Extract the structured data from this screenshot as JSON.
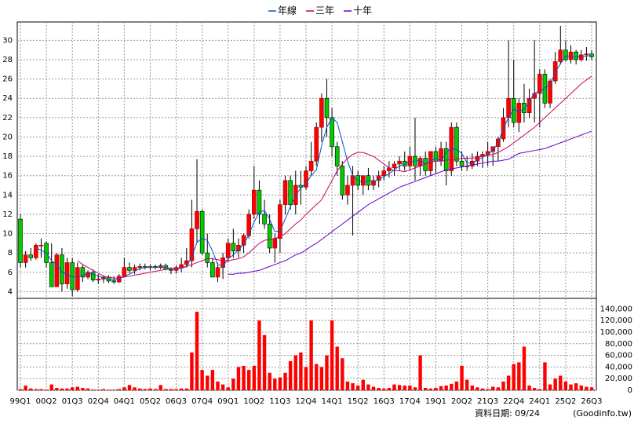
{
  "chart_data": [
    {
      "type": "candlestick",
      "categories": [
        "99Q1",
        null,
        null,
        null,
        null,
        "00Q2",
        null,
        null,
        null,
        null,
        "01Q3",
        null,
        null,
        null,
        null,
        "02Q4",
        null,
        null,
        null,
        null,
        "04Q1",
        null,
        null,
        null,
        null,
        "05Q2",
        null,
        null,
        null,
        null,
        "06Q3",
        null,
        null,
        null,
        null,
        "07Q4",
        null,
        null,
        null,
        null,
        "09Q1",
        null,
        null,
        null,
        null,
        "10Q2",
        null,
        null,
        null,
        null,
        "11Q3",
        null,
        null,
        null,
        null,
        "12Q4",
        null,
        null,
        null,
        null,
        "14Q1",
        null,
        null,
        null,
        null,
        "15Q2",
        null,
        null,
        null,
        null,
        "16Q3",
        null,
        null,
        null,
        null,
        "17Q4",
        null,
        null,
        null,
        null,
        "19Q1",
        null,
        null,
        null,
        null,
        "20Q2",
        null,
        null,
        null,
        null,
        "21Q3",
        null,
        null,
        null,
        null,
        "22Q4",
        null,
        null,
        null,
        null,
        "24Q1",
        null,
        null,
        null,
        null,
        "25Q2",
        null,
        null,
        null,
        null,
        "26Q3"
      ],
      "open": [
        11.5,
        7,
        7.8,
        7.5,
        8.8,
        9,
        7,
        4.5,
        7.8,
        4.8,
        7,
        4.2,
        6.5,
        5.5,
        6,
        5.2,
        5.3,
        5.5,
        5.1,
        5,
        5.6,
        6.5,
        6.2,
        6.5,
        6.6,
        6.5,
        6.6,
        6.5,
        6.7,
        6.3,
        6.2,
        6.5,
        6.8,
        7.2,
        10.5,
        12.3,
        8,
        7,
        5.5,
        6.5,
        7.5,
        9,
        8.2,
        8.8,
        9.8,
        12,
        14.5,
        12,
        11,
        8.5,
        9.5,
        13,
        15.5,
        13,
        15,
        14.8,
        16.5,
        17.5,
        21,
        24,
        22,
        19,
        17,
        14,
        15,
        16,
        15,
        16,
        15,
        15.5,
        16,
        16.5,
        16.8,
        17.2,
        17.5,
        17,
        18,
        17,
        17.8,
        16.5,
        18.5,
        17.5,
        18.8,
        16.5,
        21,
        17.5,
        17,
        17,
        17.5,
        18,
        18.2,
        18.5,
        19,
        19.8,
        22,
        24,
        21.5,
        23.5,
        22.5,
        24,
        24.5,
        26.5,
        23.5,
        25.8,
        27.8,
        29,
        28,
        28.8,
        28,
        28.5,
        28.6
      ],
      "high": [
        12,
        8.2,
        8.5,
        9,
        9.5,
        9.2,
        9,
        8,
        8.5,
        7.5,
        7.5,
        7,
        6.8,
        6.2,
        6.3,
        5.8,
        5.7,
        5.7,
        5.6,
        5.8,
        7.5,
        7,
        6.8,
        6.9,
        6.9,
        6.8,
        6.8,
        6.9,
        6.9,
        6.5,
        6.7,
        7.5,
        8.5,
        13.5,
        17.7,
        12.5,
        10,
        7.5,
        7,
        8,
        9.5,
        10.5,
        9.5,
        10,
        12.5,
        17,
        15.5,
        13.5,
        12,
        10,
        13.5,
        16,
        16,
        16.5,
        16.5,
        17,
        19.5,
        21.5,
        24.5,
        26,
        23,
        19.5,
        17.5,
        16,
        17,
        16.5,
        16,
        16.8,
        16,
        16.5,
        17,
        17.5,
        17.5,
        18,
        18.5,
        19,
        22,
        18,
        18.5,
        18.5,
        19,
        19.5,
        19.5,
        21.5,
        21.5,
        18.5,
        18,
        18.3,
        18.5,
        18.5,
        19.5,
        19,
        20,
        23,
        30,
        28,
        24,
        25.5,
        25,
        30,
        27,
        27,
        26,
        28.8,
        31.5,
        30,
        29.5,
        29,
        29,
        29.3,
        29
      ],
      "low": [
        6.5,
        6.5,
        7.2,
        7.3,
        7.5,
        6.5,
        4.5,
        4.5,
        4,
        4.3,
        3.5,
        4,
        5,
        5.3,
        5,
        4.8,
        4.9,
        4.9,
        4.8,
        4.9,
        5.5,
        5.9,
        5.8,
        6.2,
        6.3,
        6.2,
        6.3,
        6.3,
        6.2,
        5.8,
        5.9,
        6,
        6.5,
        6.5,
        9,
        7.8,
        6.5,
        5.5,
        5,
        5.3,
        7,
        7.5,
        7.5,
        8,
        9.5,
        11.5,
        11,
        10.5,
        8,
        7,
        8,
        12,
        12.5,
        12,
        13,
        14.5,
        16,
        17,
        19.5,
        20,
        18,
        16,
        13.5,
        13,
        9.8,
        14.5,
        14,
        14.5,
        14.5,
        14.8,
        15.5,
        15.8,
        16,
        16.5,
        16.5,
        16.5,
        15.5,
        16,
        16,
        16,
        16.2,
        17,
        15,
        16,
        17,
        16.5,
        16.5,
        16.7,
        17,
        16.8,
        17,
        17,
        17.5,
        19.5,
        21,
        21,
        20.5,
        21.5,
        22,
        21.5,
        21,
        23,
        23,
        25.5,
        27.5,
        27.8,
        27.6,
        27.5,
        27.8,
        27.9,
        28
      ],
      "close": [
        7,
        7.8,
        7.5,
        8.8,
        8.8,
        7,
        4.5,
        7.8,
        4.8,
        7,
        4.2,
        6.5,
        5.5,
        6,
        5.2,
        5.3,
        5.5,
        5.1,
        5,
        5.6,
        6.5,
        6.2,
        6.5,
        6.6,
        6.5,
        6.6,
        6.5,
        6.7,
        6.3,
        6.2,
        6.5,
        6.8,
        7.2,
        10.5,
        12.3,
        8,
        7,
        5.5,
        6.5,
        7.5,
        9,
        8.2,
        8.8,
        9.8,
        12,
        14.5,
        12,
        11,
        8.5,
        9.5,
        13,
        15.5,
        13,
        15,
        14.8,
        16.5,
        17.5,
        21,
        24,
        22,
        19,
        17,
        14,
        15,
        16,
        15,
        16,
        15,
        15.5,
        16,
        16.5,
        16.8,
        17.2,
        17.5,
        17,
        18,
        17,
        17.8,
        16.5,
        18.5,
        17.5,
        18.8,
        16.5,
        21,
        17.5,
        17,
        17,
        17.5,
        18,
        18.2,
        18.5,
        19,
        19.8,
        22,
        24,
        21.5,
        23.5,
        22.5,
        24,
        24.5,
        26.5,
        23.5,
        25.8,
        27.8,
        29,
        28,
        28.8,
        28,
        28.5,
        28.6,
        28.3
      ],
      "up_color": "#ff0000",
      "down_color": "#00cc00",
      "series": [
        {
          "name": "年線",
          "color": "#0055cc",
          "values": [
            null,
            null,
            null,
            8.5,
            8.3,
            8,
            7.2,
            6.8,
            6,
            5.8,
            5.5,
            5.6,
            5.7,
            5.9,
            5.8,
            5.6,
            5.4,
            5.3,
            5.2,
            5.3,
            5.6,
            5.8,
            6.1,
            6.4,
            6.5,
            6.5,
            6.5,
            6.5,
            6.5,
            6.4,
            6.4,
            6.4,
            6.6,
            7.6,
            9.1,
            9.5,
            9.3,
            8.2,
            6.8,
            6.6,
            7.4,
            7.8,
            8.3,
            8.9,
            9.9,
            11.2,
            12.2,
            12.4,
            11.5,
            10.2,
            10.3,
            11.5,
            12.8,
            14,
            14.7,
            15.2,
            16,
            16.6,
            19.1,
            21,
            22,
            21.5,
            19.5,
            17.5,
            16,
            15.5,
            15.3,
            15.5,
            15.4,
            15.6,
            15.9,
            16.2,
            16.6,
            17,
            17.2,
            17.4,
            17.5,
            17.6,
            17.2,
            17.5,
            17.8,
            17.5,
            18.4,
            18.8,
            18.7,
            18.3,
            17.3,
            17.3,
            17.6,
            17.9,
            18.2,
            18.6,
            19.4,
            20.9,
            22,
            22.9,
            22.6,
            22.9,
            23.6,
            24.6,
            24.7,
            25.1,
            25.4,
            26.7,
            27.6,
            28.4,
            28.3,
            28.3,
            28.3,
            28.4,
            28.4
          ]
        },
        {
          "name": "三年",
          "color": "#cc0066",
          "values": [
            null,
            null,
            null,
            null,
            null,
            null,
            null,
            null,
            null,
            null,
            null,
            7.2,
            6.8,
            6.5,
            6.2,
            5.9,
            5.6,
            5.5,
            5.4,
            5.4,
            5.5,
            5.6,
            5.7,
            5.8,
            5.9,
            6,
            6.1,
            6.2,
            6.3,
            6.4,
            6.4,
            6.5,
            6.6,
            6.8,
            7,
            7.2,
            7.4,
            7.4,
            7.3,
            7.2,
            7.2,
            7.3,
            7.4,
            7.6,
            8,
            8.5,
            9,
            9.3,
            9.4,
            9.5,
            9.7,
            10,
            10.5,
            11,
            11.4,
            12,
            12.5,
            13,
            13.5,
            14.5,
            15.5,
            16.5,
            17.2,
            17.8,
            18.2,
            18.4,
            18.4,
            18.2,
            18,
            17.6,
            17.2,
            16.8,
            16.5,
            16.5,
            16.4,
            16.6,
            16.8,
            17,
            17.2,
            17.4,
            17.5,
            17.5,
            17.6,
            17.7,
            17.7,
            17.8,
            17.8,
            17.8,
            17.9,
            18,
            18.1,
            18.2,
            18.4,
            18.7,
            19,
            19.4,
            19.8,
            20.2,
            20.6,
            21,
            21.5,
            22,
            22.5,
            23,
            23.5,
            24,
            24.5,
            25,
            25.5,
            25.9,
            26.3
          ]
        },
        {
          "name": "十年",
          "color": "#6600cc",
          "values": [
            null,
            null,
            null,
            null,
            null,
            null,
            null,
            null,
            null,
            null,
            null,
            null,
            null,
            null,
            null,
            null,
            null,
            null,
            null,
            null,
            null,
            null,
            null,
            null,
            null,
            null,
            null,
            null,
            null,
            null,
            null,
            null,
            null,
            null,
            null,
            null,
            null,
            null,
            null,
            null,
            5.8,
            5.8,
            5.9,
            5.9,
            6,
            6.1,
            6.2,
            6.4,
            6.6,
            6.8,
            7,
            7.2,
            7.5,
            7.8,
            8,
            8.3,
            8.7,
            9,
            9.4,
            9.8,
            10.2,
            10.6,
            11,
            11.4,
            11.8,
            12.2,
            12.6,
            13,
            13.3,
            13.6,
            13.9,
            14.2,
            14.5,
            14.8,
            15,
            15.2,
            15.4,
            15.6,
            15.8,
            16,
            16.2,
            16.4,
            16.6,
            16.7,
            16.8,
            16.9,
            17,
            17.1,
            17.2,
            17.3,
            17.4,
            17.5,
            17.5,
            17.6,
            17.7,
            18,
            18.3,
            18.4,
            18.5,
            18.6,
            18.7,
            18.8,
            19,
            19.2,
            19.4,
            19.6,
            19.8,
            20,
            20.2,
            20.4,
            20.6
          ]
        }
      ],
      "ylim": [
        3.3,
        31.9
      ],
      "yticks": [
        4,
        6,
        8,
        10,
        12,
        14,
        16,
        18,
        20,
        22,
        24,
        26,
        28,
        30
      ],
      "grid": true
    },
    {
      "type": "bar",
      "color": "#ff0000",
      "values": [
        2000,
        8000,
        3000,
        2000,
        2000,
        1000,
        10000,
        4000,
        3000,
        3000,
        5000,
        6000,
        4000,
        3000,
        1000,
        1000,
        2000,
        1000,
        1000,
        2000,
        5000,
        9000,
        5000,
        3000,
        2000,
        3000,
        2000,
        9000,
        2000,
        2000,
        2000,
        3000,
        3000,
        65000,
        135000,
        35000,
        25000,
        35000,
        15000,
        10000,
        5000,
        20000,
        40000,
        42000,
        35000,
        42000,
        120000,
        95000,
        30000,
        20000,
        22000,
        30000,
        50000,
        60000,
        65000,
        40000,
        120000,
        45000,
        40000,
        60000,
        120000,
        75000,
        55000,
        15000,
        12000,
        8000,
        18000,
        10000,
        6000,
        4000,
        3000,
        4000,
        10000,
        9000,
        8000,
        8000,
        5000,
        60000,
        4000,
        3000,
        4000,
        7000,
        8000,
        11000,
        15000,
        42000,
        18000,
        8000,
        5000,
        3000,
        2000,
        6000,
        5000,
        15000,
        25000,
        45000,
        48000,
        75000,
        8000,
        4000,
        2000,
        48000,
        10000,
        20000,
        25000,
        15000,
        10000,
        12000,
        8000,
        6000,
        5000
      ],
      "ylim": [
        0,
        158000
      ],
      "yticks": [
        0,
        {
          "value": 20000,
          "label": "20,000"
        },
        {
          "value": 40000,
          "label": "40,000"
        },
        {
          "value": 60000,
          "label": "60,000"
        },
        {
          "value": 80000,
          "label": "80,000"
        },
        {
          "value": 100000,
          "label": "100,000"
        },
        {
          "value": 120000,
          "label": "120,000"
        },
        {
          "value": 140000,
          "label": "140,000"
        }
      ],
      "grid": true
    }
  ],
  "footer": {
    "date": "資料日期: 09/24",
    "source": "(Goodinfo.tw)"
  }
}
